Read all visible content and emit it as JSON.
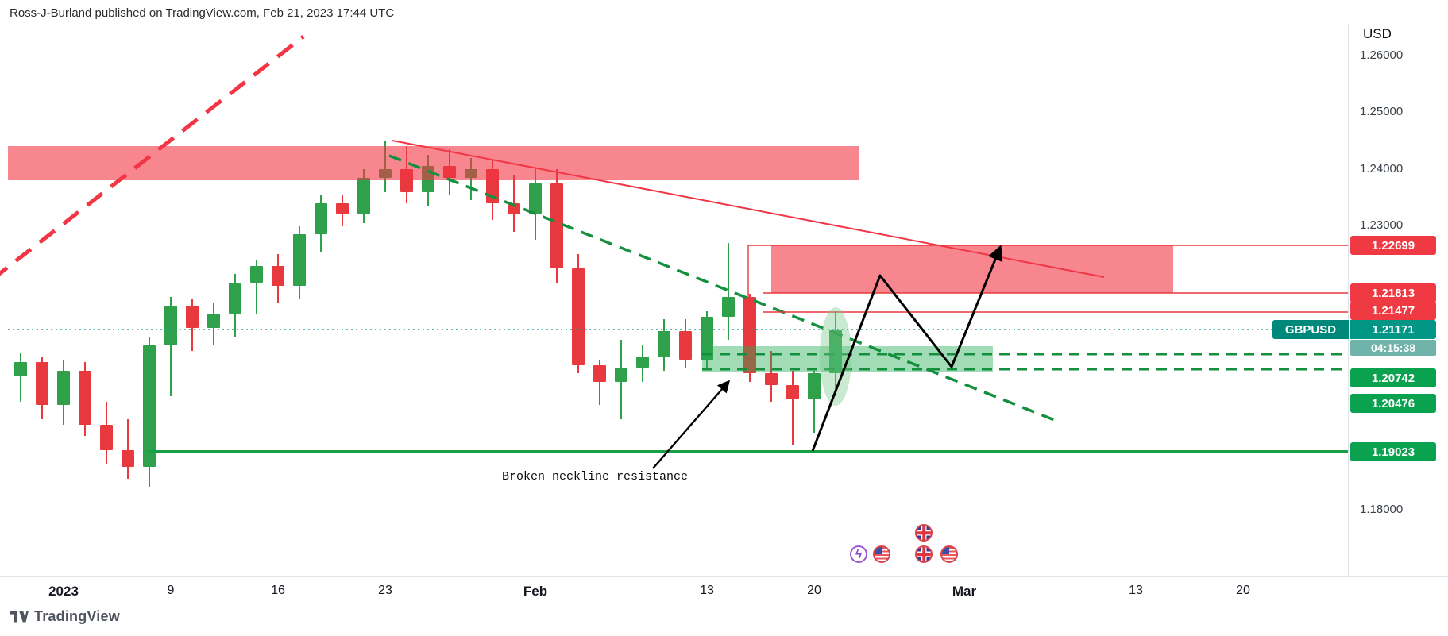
{
  "byline": "Ross-J-Burland published on TradingView.com, Feb 21, 2023 17:44 UTC",
  "axis": {
    "currency": "USD",
    "plain_labels": [
      "1.26000",
      "1.25000",
      "1.24000",
      "1.23000",
      "1.18000"
    ],
    "time_labels": [
      "2023",
      "9",
      "16",
      "23",
      "Feb",
      "13",
      "20",
      "Mar",
      "13",
      "20"
    ]
  },
  "symbol_label": {
    "name": "GBPUSD",
    "price": "1.21171",
    "countdown": "04:15:38"
  },
  "levels": {
    "r1": {
      "label": "1.22699",
      "color": "#ef3a44",
      "role": "resistance"
    },
    "r2": {
      "label": "1.21813",
      "color": "#ef3a44",
      "role": "resistance"
    },
    "r3": {
      "label": "1.21477",
      "color": "#ef3a44",
      "role": "resistance"
    },
    "s1": {
      "label": "1.20742",
      "color": "#0aa14f",
      "role": "support"
    },
    "s2": {
      "label": "1.20476",
      "color": "#0aa14f",
      "role": "support"
    },
    "s3": {
      "label": "1.19023",
      "color": "#0aa14f",
      "role": "support"
    }
  },
  "annotations": {
    "neckline": "Broken neckline resistance"
  },
  "footer": {
    "logo": "TradingView"
  },
  "chart_data": {
    "type": "candlestick",
    "symbol": "GBPUSD",
    "quote_currency": "USD",
    "current_price": 1.21171,
    "countdown_to_bar_close": "04:15:38",
    "x_tick_labels": [
      "2023",
      "9",
      "16",
      "23",
      "Feb",
      "13",
      "20",
      "Mar",
      "13",
      "20"
    ],
    "y_tick_labels": [
      1.26,
      1.25,
      1.24,
      1.23,
      1.18
    ],
    "y_axis_range": [
      1.168,
      1.265
    ],
    "grid": false,
    "candles_ohlc": [
      [
        1.2035,
        1.2075,
        1.199,
        1.206
      ],
      [
        1.206,
        1.207,
        1.196,
        1.1985
      ],
      [
        1.1985,
        1.2065,
        1.195,
        1.2045
      ],
      [
        1.2045,
        1.206,
        1.193,
        1.195
      ],
      [
        1.195,
        1.199,
        1.188,
        1.1905
      ],
      [
        1.1905,
        1.196,
        1.1855,
        1.1875
      ],
      [
        1.1875,
        1.2105,
        1.184,
        1.209
      ],
      [
        1.209,
        1.2175,
        1.2,
        1.216
      ],
      [
        1.216,
        1.217,
        1.208,
        1.212
      ],
      [
        1.212,
        1.2165,
        1.209,
        1.2145
      ],
      [
        1.2145,
        1.2215,
        1.2105,
        1.22
      ],
      [
        1.22,
        1.224,
        1.2145,
        1.223
      ],
      [
        1.223,
        1.225,
        1.2165,
        1.2195
      ],
      [
        1.2195,
        1.23,
        1.217,
        1.2285
      ],
      [
        1.2285,
        1.2355,
        1.2255,
        1.234
      ],
      [
        1.234,
        1.2355,
        1.23,
        1.232
      ],
      [
        1.232,
        1.24,
        1.2305,
        1.2385
      ],
      [
        1.2385,
        1.245,
        1.236,
        1.24
      ],
      [
        1.24,
        1.244,
        1.234,
        1.236
      ],
      [
        1.236,
        1.2425,
        1.2335,
        1.2405
      ],
      [
        1.2405,
        1.2435,
        1.2355,
        1.2385
      ],
      [
        1.2385,
        1.242,
        1.2345,
        1.24
      ],
      [
        1.24,
        1.2415,
        1.231,
        1.234
      ],
      [
        1.234,
        1.239,
        1.229,
        1.232
      ],
      [
        1.232,
        1.24,
        1.2275,
        1.2375
      ],
      [
        1.2375,
        1.24,
        1.22,
        1.2225
      ],
      [
        1.2225,
        1.225,
        1.204,
        1.2055
      ],
      [
        1.2055,
        1.2065,
        1.1985,
        1.2025
      ],
      [
        1.2025,
        1.21,
        1.196,
        1.205
      ],
      [
        1.205,
        1.209,
        1.2025,
        1.207
      ],
      [
        1.207,
        1.2135,
        1.2045,
        1.2115
      ],
      [
        1.2115,
        1.2135,
        1.205,
        1.2065
      ],
      [
        1.2065,
        1.215,
        1.205,
        1.214
      ],
      [
        1.214,
        1.227,
        1.21,
        1.2175
      ],
      [
        1.2175,
        1.218,
        1.2025,
        1.204
      ],
      [
        1.204,
        1.208,
        1.199,
        1.202
      ],
      [
        1.202,
        1.2045,
        1.1915,
        1.1995
      ],
      [
        1.1995,
        1.2045,
        1.1935,
        1.204
      ],
      [
        1.204,
        1.215,
        1.2,
        1.2117
      ]
    ],
    "horizontal_levels": [
      {
        "price": 1.22699,
        "style": "solid",
        "color": "#ef3a44"
      },
      {
        "price": 1.21813,
        "style": "solid",
        "color": "#ef3a44"
      },
      {
        "price": 1.21477,
        "style": "solid",
        "color": "#ef3a44"
      },
      {
        "price": 1.21171,
        "style": "dotted-current-price",
        "color": "#26a69a"
      },
      {
        "price": 1.20742,
        "style": "dashed",
        "color": "#148f3e"
      },
      {
        "price": 1.20476,
        "style": "dashed",
        "color": "#148f3e"
      },
      {
        "price": 1.19023,
        "style": "solid",
        "color": "#18a048"
      }
    ],
    "zones": [
      {
        "type": "supply",
        "price_from": 1.2378,
        "price_to": 1.244,
        "color": "#f23645"
      },
      {
        "type": "supply",
        "price_from": 1.21813,
        "price_to": 1.22699,
        "color": "#f23645"
      },
      {
        "type": "demand",
        "price_from": 1.2045,
        "price_to": 1.2085,
        "color": "#22ab50"
      }
    ],
    "trendlines": [
      {
        "name": "rising-dashed",
        "color": "#f23645",
        "style": "dashed"
      },
      {
        "name": "falling-resistance",
        "color": "#f23645",
        "style": "solid"
      },
      {
        "name": "falling-dashed",
        "color": "#148f3e",
        "style": "dashed"
      }
    ],
    "annotation_text": "Broken neckline resistance"
  }
}
